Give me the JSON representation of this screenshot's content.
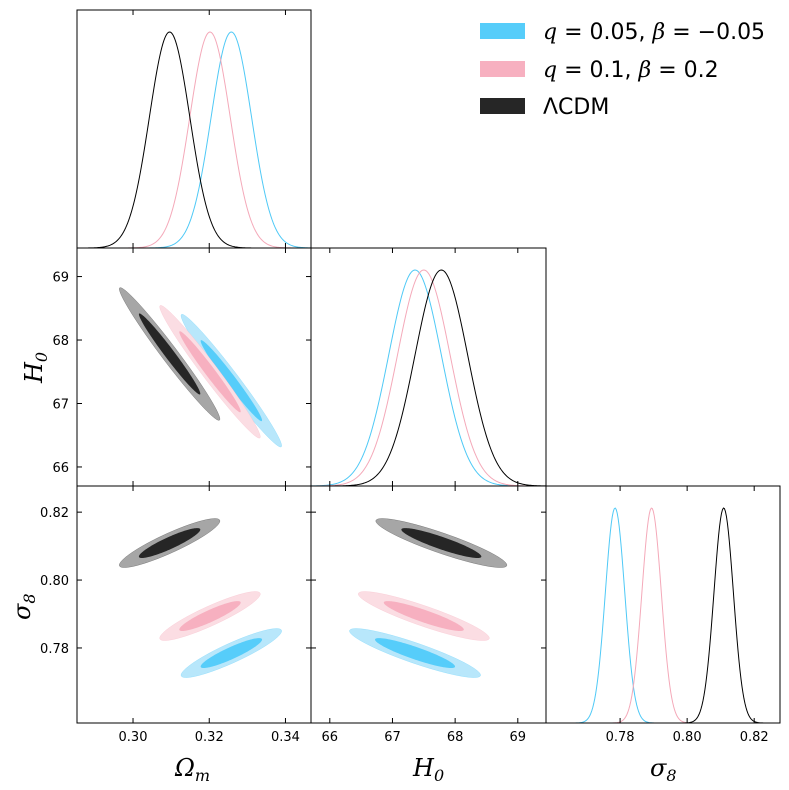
{
  "chart_data": {
    "type": "triangle-corner",
    "parameters": [
      "Omega_m",
      "H0",
      "sigma8"
    ],
    "axis_labels": {
      "Omega_m": {
        "base": "Ω",
        "sub": "m"
      },
      "H0": {
        "base": "H",
        "sub": "0"
      },
      "sigma8": {
        "base": "σ",
        "sub": "8"
      }
    },
    "ranges": {
      "Omega_m": [
        0.2853,
        0.3467
      ],
      "H0": [
        65.7,
        69.45
      ],
      "sigma8": [
        0.7579,
        0.8277
      ]
    },
    "ticks": {
      "Omega_m": [
        "0.30",
        "0.32",
        "0.34"
      ],
      "H0": [
        "66",
        "67",
        "68",
        "69"
      ],
      "sigma8": [
        "0.78",
        "0.80",
        "0.82"
      ]
    },
    "series": [
      {
        "name": "q = 0.05, β = −0.05",
        "legend": {
          "q_val": "0.05",
          "beta_val": "−0.05"
        },
        "color": "#4fc9f6",
        "fill_inner": "#56cdfa",
        "fill_outer": "#b8e7fb",
        "mean": {
          "Omega_m": 0.3258,
          "H0": 67.36,
          "sigma8": 0.7785
        },
        "sigma": {
          "Omega_m": 0.0053,
          "H0": 0.42,
          "sigma8": 0.0029
        },
        "corr": {
          "Omega_m_H0": -0.98,
          "Omega_m_sigma8": 0.9,
          "H0_sigma8": -0.9
        }
      },
      {
        "name": "q = 0.1, β = 0.2",
        "legend": {
          "q_val": "0.1",
          "beta_val": "0.2"
        },
        "color": "#f4a9b9",
        "fill_inner": "#f7b0c0",
        "fill_outer": "#fbdde3",
        "mean": {
          "Omega_m": 0.3202,
          "H0": 67.5,
          "sigma8": 0.7894
        },
        "sigma": {
          "Omega_m": 0.0053,
          "H0": 0.42,
          "sigma8": 0.0029
        },
        "corr": {
          "Omega_m_H0": -0.98,
          "Omega_m_sigma8": 0.9,
          "H0_sigma8": -0.9
        }
      },
      {
        "name": "ΛCDM",
        "legend": {
          "label": "ΛCDM"
        },
        "color": "#000000",
        "fill_inner": "#262626",
        "fill_outer": "#a6a6a6",
        "mean": {
          "Omega_m": 0.3096,
          "H0": 67.78,
          "sigma8": 0.8109
        },
        "sigma": {
          "Omega_m": 0.0053,
          "H0": 0.42,
          "sigma8": 0.0029
        },
        "corr": {
          "Omega_m_H0": -0.98,
          "Omega_m_sigma8": 0.9,
          "H0_sigma8": -0.9
        }
      }
    ]
  }
}
